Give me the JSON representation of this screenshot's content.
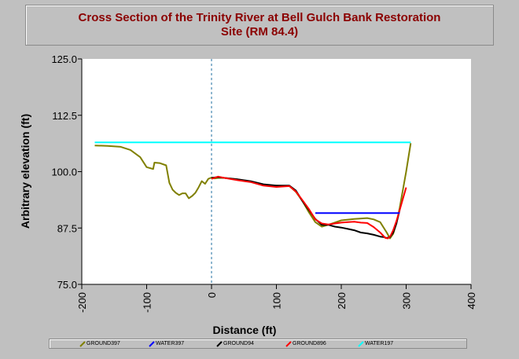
{
  "chart_data": {
    "type": "line",
    "title_lines": [
      "Cross Section of the Trinity River at Bell Gulch Bank Restoration",
      "Site (RM 84.4)"
    ],
    "xlabel": "Distance (ft)",
    "ylabel": "Arbitrary elevation (ft)",
    "xlim": [
      -200,
      400
    ],
    "ylim": [
      75,
      125
    ],
    "x_ticks": [
      -200,
      -100,
      0,
      100,
      200,
      300,
      400
    ],
    "x_tick_labels": [
      "-200",
      "-100",
      "0",
      "100",
      "200",
      "300",
      "400"
    ],
    "y_ticks": [
      75,
      87.5,
      100,
      112.5,
      125
    ],
    "y_tick_labels": [
      "75.0",
      "87.5",
      "100.0",
      "112.5",
      "125.0"
    ],
    "vertical_reference_x": 0,
    "grid": false,
    "legend_position": "bottom",
    "series": [
      {
        "name": "GROUND397",
        "color": "#808000",
        "x": [
          -180,
          -160,
          -140,
          -125,
          -110,
          -100,
          -90,
          -88,
          -80,
          -70,
          -65,
          -60,
          -55,
          -50,
          -45,
          -40,
          -35,
          -30,
          -25,
          -20,
          -15,
          -10,
          -5,
          0,
          5,
          10,
          20,
          40,
          60,
          80,
          100,
          120,
          130,
          140,
          150,
          160,
          170,
          180,
          200,
          220,
          240,
          250,
          260,
          270,
          275,
          280,
          285,
          290,
          300,
          307
        ],
        "y": [
          105.8,
          105.7,
          105.5,
          104.8,
          103.2,
          101.0,
          100.6,
          102.0,
          101.9,
          101.4,
          97.5,
          96.0,
          95.3,
          94.8,
          95.2,
          95.2,
          94.1,
          94.6,
          95.3,
          96.5,
          97.9,
          97.3,
          98.4,
          98.7,
          98.5,
          98.6,
          98.6,
          98.3,
          97.8,
          97.0,
          96.9,
          96.8,
          95.5,
          93.5,
          91.0,
          88.8,
          87.8,
          88.2,
          89.2,
          89.5,
          89.7,
          89.4,
          88.8,
          86.5,
          85.2,
          86.2,
          88.5,
          92.0,
          100.0,
          106.3
        ]
      },
      {
        "name": "WATER397",
        "color": "#0000ff",
        "x": [
          160,
          290
        ],
        "y": [
          90.8,
          90.8
        ]
      },
      {
        "name": "GROUND94",
        "color": "#000000",
        "x": [
          0,
          10,
          20,
          40,
          60,
          80,
          100,
          120,
          130,
          140,
          150,
          160,
          170,
          180,
          190,
          200,
          210,
          220,
          230,
          240,
          250,
          260,
          265,
          270,
          275,
          280,
          285,
          290
        ],
        "y": [
          98.6,
          98.8,
          98.6,
          98.3,
          97.9,
          97.2,
          96.9,
          96.9,
          95.8,
          93.5,
          91.5,
          89.5,
          88.2,
          88.2,
          87.8,
          87.6,
          87.3,
          87.0,
          86.5,
          86.3,
          86.0,
          85.6,
          85.5,
          85.3,
          85.5,
          86.5,
          88.5,
          91.5
        ]
      },
      {
        "name": "GROUND896",
        "color": "#ff0000",
        "x": [
          0,
          10,
          20,
          40,
          60,
          80,
          100,
          120,
          130,
          140,
          150,
          160,
          170,
          180,
          190,
          200,
          210,
          220,
          230,
          240,
          250,
          260,
          268,
          272,
          276,
          280,
          285,
          290,
          295,
          300
        ],
        "y": [
          98.4,
          98.9,
          98.6,
          98.1,
          97.7,
          96.9,
          96.6,
          96.8,
          95.6,
          93.7,
          91.7,
          89.4,
          88.5,
          88.3,
          88.5,
          88.7,
          88.8,
          88.9,
          88.7,
          88.6,
          87.7,
          86.5,
          85.3,
          85.2,
          85.8,
          87.0,
          89.0,
          91.5,
          94.0,
          96.5
        ]
      },
      {
        "name": "WATER197",
        "color": "#00ffff",
        "x": [
          -180,
          307
        ],
        "y": [
          106.5,
          106.5
        ]
      }
    ]
  }
}
